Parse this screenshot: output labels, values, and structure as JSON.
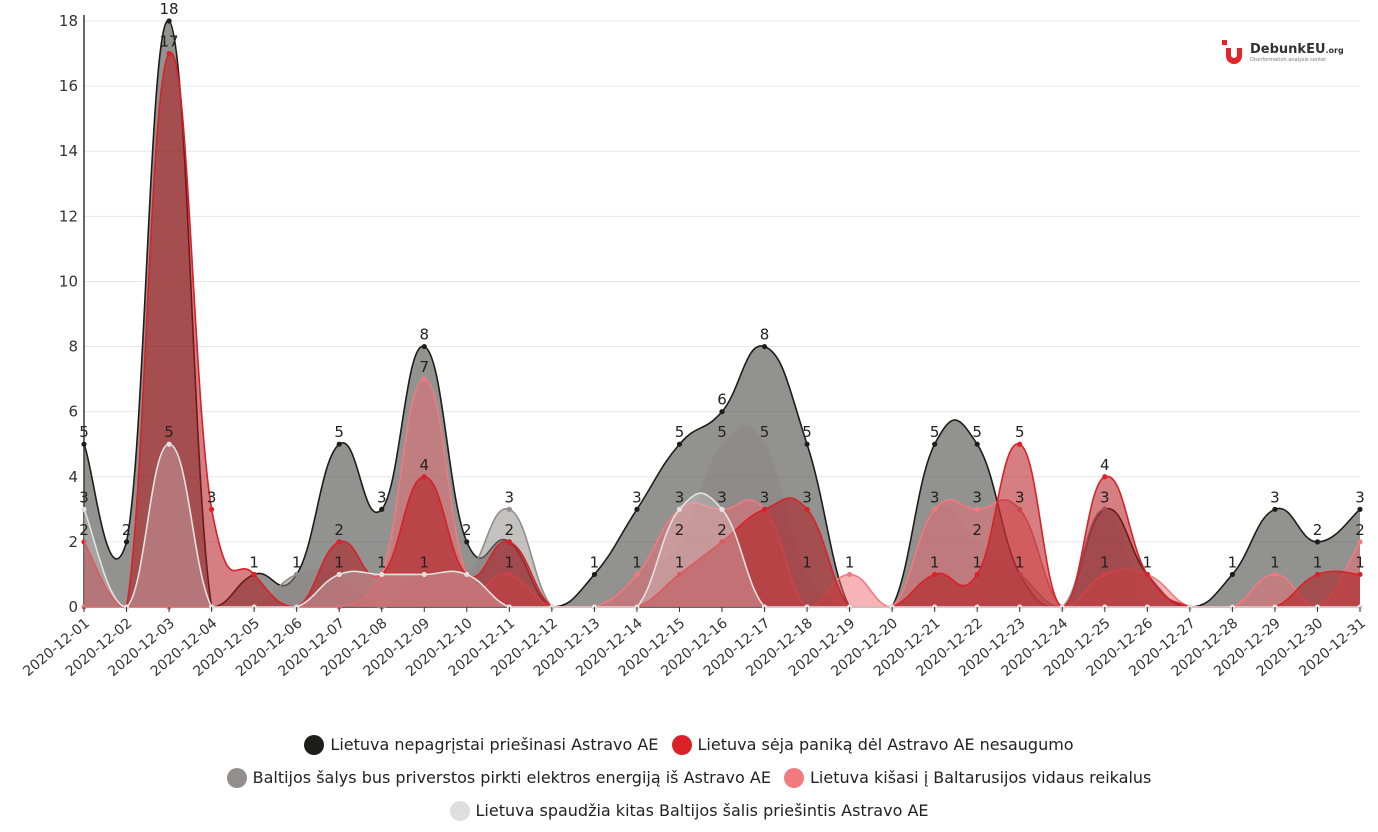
{
  "logo": {
    "brand": "DebunkEU",
    "tld": ".org",
    "sub": "Disinformation analysis center",
    "color": "#e3242b"
  },
  "chart_data": {
    "type": "area",
    "x": [
      "2020-12-01",
      "2020-12-02",
      "2020-12-03",
      "2020-12-04",
      "2020-12-05",
      "2020-12-06",
      "2020-12-07",
      "2020-12-08",
      "2020-12-09",
      "2020-12-10",
      "2020-12-11",
      "2020-12-12",
      "2020-12-13",
      "2020-12-14",
      "2020-12-15",
      "2020-12-16",
      "2020-12-17",
      "2020-12-18",
      "2020-12-19",
      "2020-12-20",
      "2020-12-21",
      "2020-12-22",
      "2020-12-23",
      "2020-12-24",
      "2020-12-25",
      "2020-12-26",
      "2020-12-27",
      "2020-12-28",
      "2020-12-29",
      "2020-12-30",
      "2020-12-31"
    ],
    "y_ticks": [
      "0",
      "2",
      "4",
      "6",
      "8",
      "10",
      "12",
      "14",
      "16",
      "18"
    ],
    "ylim": [
      0,
      18
    ],
    "grid": true,
    "legend_position": "bottom",
    "series": [
      {
        "name": "Lietuva nepagrįstai priešinasi Astravo AE",
        "color": "#1d1d1b",
        "fill": "#4a4a48",
        "opacity": 0.6,
        "values": [
          5,
          2,
          18,
          0,
          1,
          1,
          5,
          3,
          8,
          2,
          2,
          0,
          1,
          3,
          5,
          6,
          8,
          5,
          0,
          0,
          5,
          5,
          1,
          0,
          3,
          1,
          0,
          1,
          3,
          2,
          3
        ]
      },
      {
        "name": "Lietuva sėja paniką dėl Astravo AE nesaugumo",
        "color": "#da2128",
        "fill": "#b3151c",
        "opacity": 0.55,
        "values": [
          2,
          0,
          17,
          3,
          1,
          0,
          2,
          1,
          4,
          1,
          2,
          0,
          0,
          0,
          1,
          2,
          3,
          3,
          0,
          0,
          1,
          1,
          5,
          0,
          4,
          1,
          0,
          0,
          0,
          1,
          1
        ]
      },
      {
        "name": "Baltijos šalys bus priverstos pirkti elektros energiją iš Astravo AE",
        "color": "#938d8c",
        "fill": "#8a8383",
        "opacity": 0.5,
        "values": [
          3,
          0,
          5,
          0,
          0,
          1,
          1,
          0,
          1,
          1,
          3,
          0,
          0,
          1,
          2,
          5,
          5,
          1,
          0,
          0,
          3,
          2,
          1,
          0,
          3,
          0,
          0,
          0,
          0,
          0,
          0
        ]
      },
      {
        "name": "Lietuva kišasi į Baltarusijos vidaus reikalus",
        "color": "#f07a7e",
        "fill": "#ee6a70",
        "opacity": 0.5,
        "values": [
          0,
          0,
          0,
          0,
          0,
          0,
          0,
          1,
          7,
          1,
          1,
          0,
          0,
          1,
          3,
          3,
          3,
          0,
          1,
          0,
          3,
          3,
          3,
          0,
          1,
          1,
          0,
          0,
          1,
          0,
          2
        ]
      },
      {
        "name": "Lietuva spaudžia kitas Baltijos šalis priešintis Astravo AE",
        "color": "#e2e2e2",
        "fill": "#dddddd",
        "opacity": 0.3,
        "values": [
          3,
          0,
          5,
          0,
          0,
          0,
          1,
          1,
          1,
          1,
          0,
          0,
          0,
          0,
          3,
          3,
          0,
          0,
          0,
          0,
          0,
          0,
          0,
          0,
          0,
          0,
          0,
          0,
          0,
          0,
          0
        ]
      }
    ],
    "labels": {
      "0": [
        [
          5,
          "5"
        ],
        [
          3,
          "3"
        ],
        [
          2,
          "2"
        ]
      ],
      "1": [
        [
          2,
          "2"
        ]
      ],
      "2": [
        [
          18,
          "18"
        ],
        [
          17,
          "17"
        ],
        [
          5,
          "5"
        ]
      ],
      "3": [
        [
          3,
          "3"
        ]
      ],
      "4": [
        [
          1,
          "1"
        ]
      ],
      "5": [
        [
          1,
          "1"
        ]
      ],
      "6": [
        [
          5,
          "5"
        ],
        [
          2,
          "2"
        ],
        [
          1,
          "1"
        ]
      ],
      "7": [
        [
          3,
          "3"
        ],
        [
          1,
          "1"
        ]
      ],
      "8": [
        [
          8,
          "8"
        ],
        [
          7,
          "7"
        ],
        [
          4,
          "4"
        ],
        [
          1,
          "1"
        ]
      ],
      "9": [
        [
          2,
          "2"
        ]
      ],
      "10": [
        [
          3,
          "3"
        ],
        [
          2,
          "2"
        ],
        [
          1,
          "1"
        ]
      ],
      "12": [
        [
          1,
          "1"
        ]
      ],
      "13": [
        [
          3,
          "3"
        ],
        [
          1,
          "1"
        ]
      ],
      "14": [
        [
          5,
          "5"
        ],
        [
          3,
          "3"
        ],
        [
          2,
          "2"
        ],
        [
          1,
          "1"
        ]
      ],
      "15": [
        [
          6,
          "6"
        ],
        [
          5,
          "5"
        ],
        [
          3,
          "3"
        ],
        [
          2,
          "2"
        ]
      ],
      "16": [
        [
          8,
          "8"
        ],
        [
          5,
          "5"
        ],
        [
          3,
          "3"
        ]
      ],
      "17": [
        [
          5,
          "5"
        ],
        [
          3,
          "3"
        ],
        [
          1,
          "1"
        ]
      ],
      "18": [
        [
          1,
          "1"
        ]
      ],
      "20": [
        [
          5,
          "5"
        ],
        [
          3,
          "3"
        ],
        [
          1,
          "1"
        ]
      ],
      "21": [
        [
          5,
          "5"
        ],
        [
          3,
          "3"
        ],
        [
          2,
          "2"
        ],
        [
          1,
          "1"
        ]
      ],
      "22": [
        [
          5,
          "5"
        ],
        [
          3,
          "3"
        ],
        [
          1,
          "1"
        ]
      ],
      "24": [
        [
          4,
          "4"
        ],
        [
          3,
          "3"
        ],
        [
          1,
          "1"
        ]
      ],
      "25": [
        [
          1,
          "1"
        ]
      ],
      "27": [
        [
          1,
          "1"
        ]
      ],
      "28": [
        [
          3,
          "3"
        ],
        [
          1,
          "1"
        ]
      ],
      "29": [
        [
          2,
          "2"
        ],
        [
          1,
          "1"
        ]
      ],
      "30": [
        [
          3,
          "3"
        ],
        [
          2,
          "2"
        ],
        [
          1,
          "1"
        ]
      ]
    }
  }
}
